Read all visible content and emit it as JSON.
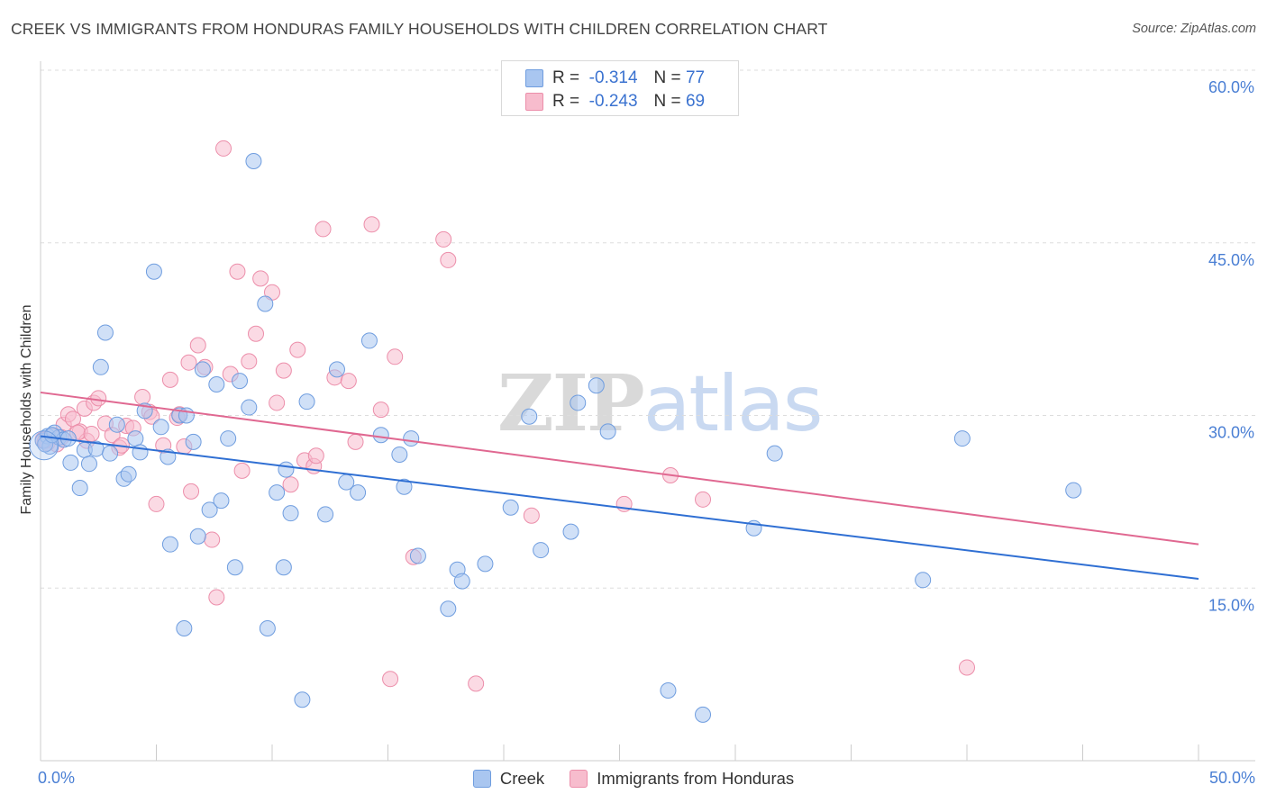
{
  "header": {
    "title": "CREEK VS IMMIGRANTS FROM HONDURAS FAMILY HOUSEHOLDS WITH CHILDREN CORRELATION CHART",
    "source": "Source: ZipAtlas.com"
  },
  "watermark": {
    "zip": "ZIP",
    "atlas": "atlas"
  },
  "legend": {
    "rows": [
      {
        "r_label": "R =",
        "r_value": "-0.314",
        "n_label": "N =",
        "n_value": "77"
      },
      {
        "r_label": "R =",
        "r_value": "-0.243",
        "n_label": "N =",
        "n_value": "69"
      }
    ]
  },
  "bottom_legend": {
    "creek": "Creek",
    "honduras": "Immigrants from Honduras"
  },
  "colors": {
    "creek_fill": "#a9c6f0",
    "creek_stroke": "#6f9ddf",
    "creek_line": "#2f6fd3",
    "honduras_fill": "#f7bccd",
    "honduras_stroke": "#ec8eaa",
    "honduras_line": "#e06891",
    "grid": "#dddddd",
    "tick_text": "#4a7fd4"
  },
  "chart_data": {
    "type": "scatter",
    "title": "CREEK VS IMMIGRANTS FROM HONDURAS FAMILY HOUSEHOLDS WITH CHILDREN CORRELATION CHART",
    "xlabel": "",
    "ylabel": "Family Households with Children",
    "xlim": [
      0,
      50
    ],
    "ylim": [
      0,
      60
    ],
    "x_tick_labels": [
      "0.0%",
      "50.0%"
    ],
    "y_ticks": [
      15,
      30,
      45,
      60
    ],
    "y_tick_labels": [
      "15.0%",
      "30.0%",
      "45.0%",
      "60.0%"
    ],
    "series": [
      {
        "name": "Creek",
        "r": -0.314,
        "n": 77,
        "trend": {
          "x": [
            0,
            50
          ],
          "y": [
            28.2,
            15.8
          ]
        },
        "points": [
          [
            0.1,
            27.8
          ],
          [
            0.3,
            28.2
          ],
          [
            0.4,
            27.3
          ],
          [
            0.6,
            28.5
          ],
          [
            0.8,
            28.1
          ],
          [
            1.0,
            27.9
          ],
          [
            1.2,
            28.0
          ],
          [
            1.3,
            25.9
          ],
          [
            1.7,
            23.7
          ],
          [
            1.9,
            27.0
          ],
          [
            2.1,
            25.8
          ],
          [
            2.4,
            27.1
          ],
          [
            2.6,
            34.2
          ],
          [
            2.8,
            37.2
          ],
          [
            3.0,
            26.7
          ],
          [
            3.3,
            29.2
          ],
          [
            3.6,
            24.5
          ],
          [
            3.8,
            24.9
          ],
          [
            4.1,
            28.0
          ],
          [
            4.3,
            26.8
          ],
          [
            4.5,
            30.4
          ],
          [
            4.9,
            42.5
          ],
          [
            5.2,
            29.0
          ],
          [
            5.5,
            26.4
          ],
          [
            5.6,
            18.8
          ],
          [
            6.0,
            30.0
          ],
          [
            6.2,
            11.5
          ],
          [
            6.3,
            30.0
          ],
          [
            6.6,
            27.7
          ],
          [
            6.8,
            19.5
          ],
          [
            7.0,
            34.0
          ],
          [
            7.3,
            21.8
          ],
          [
            7.6,
            32.7
          ],
          [
            7.8,
            22.6
          ],
          [
            8.1,
            28.0
          ],
          [
            8.4,
            16.8
          ],
          [
            8.6,
            33.0
          ],
          [
            9.0,
            30.7
          ],
          [
            9.2,
            52.1
          ],
          [
            9.7,
            39.7
          ],
          [
            9.8,
            11.5
          ],
          [
            10.2,
            23.3
          ],
          [
            10.5,
            16.8
          ],
          [
            10.6,
            25.3
          ],
          [
            10.8,
            21.5
          ],
          [
            11.3,
            5.3
          ],
          [
            11.5,
            31.2
          ],
          [
            12.3,
            21.4
          ],
          [
            12.8,
            34.0
          ],
          [
            13.2,
            24.2
          ],
          [
            13.7,
            23.3
          ],
          [
            14.2,
            36.5
          ],
          [
            14.7,
            28.3
          ],
          [
            15.5,
            26.6
          ],
          [
            15.7,
            23.8
          ],
          [
            16.0,
            28.0
          ],
          [
            16.3,
            17.8
          ],
          [
            17.6,
            13.2
          ],
          [
            18.0,
            16.6
          ],
          [
            18.2,
            15.6
          ],
          [
            19.2,
            17.1
          ],
          [
            20.3,
            22.0
          ],
          [
            21.1,
            29.9
          ],
          [
            21.6,
            18.3
          ],
          [
            22.9,
            19.9
          ],
          [
            23.2,
            31.1
          ],
          [
            24.0,
            32.6
          ],
          [
            24.5,
            28.6
          ],
          [
            27.1,
            6.1
          ],
          [
            28.6,
            4.0
          ],
          [
            30.8,
            20.2
          ],
          [
            31.7,
            26.7
          ],
          [
            38.1,
            15.7
          ],
          [
            39.8,
            28.0
          ],
          [
            44.6,
            23.5
          ],
          [
            0.2,
            27.5
          ],
          [
            0.5,
            28.3
          ]
        ]
      },
      {
        "name": "Immigrants from Honduras",
        "r": -0.243,
        "n": 69,
        "trend": {
          "x": [
            0,
            50
          ],
          "y": [
            32.0,
            18.8
          ]
        },
        "points": [
          [
            0.1,
            27.9
          ],
          [
            0.3,
            27.6
          ],
          [
            0.5,
            28.2
          ],
          [
            0.7,
            27.5
          ],
          [
            1.0,
            29.2
          ],
          [
            1.2,
            30.1
          ],
          [
            1.4,
            29.7
          ],
          [
            1.7,
            28.6
          ],
          [
            1.9,
            30.6
          ],
          [
            2.0,
            27.8
          ],
          [
            2.3,
            31.1
          ],
          [
            2.5,
            31.5
          ],
          [
            2.8,
            29.3
          ],
          [
            3.1,
            28.3
          ],
          [
            3.4,
            27.2
          ],
          [
            3.7,
            29.1
          ],
          [
            4.0,
            28.9
          ],
          [
            4.4,
            31.6
          ],
          [
            4.7,
            30.3
          ],
          [
            5.0,
            22.3
          ],
          [
            5.3,
            27.4
          ],
          [
            5.6,
            33.1
          ],
          [
            5.9,
            29.8
          ],
          [
            6.2,
            27.3
          ],
          [
            6.4,
            34.6
          ],
          [
            6.5,
            23.4
          ],
          [
            6.8,
            36.1
          ],
          [
            7.1,
            34.2
          ],
          [
            7.4,
            19.2
          ],
          [
            7.6,
            14.2
          ],
          [
            7.9,
            53.2
          ],
          [
            8.2,
            33.6
          ],
          [
            8.5,
            42.5
          ],
          [
            8.7,
            25.2
          ],
          [
            9.0,
            34.7
          ],
          [
            9.3,
            37.1
          ],
          [
            9.5,
            41.9
          ],
          [
            10.0,
            40.7
          ],
          [
            10.2,
            31.1
          ],
          [
            10.5,
            33.9
          ],
          [
            10.8,
            24.0
          ],
          [
            11.1,
            35.7
          ],
          [
            11.4,
            26.1
          ],
          [
            11.8,
            25.6
          ],
          [
            12.2,
            46.2
          ],
          [
            12.7,
            33.3
          ],
          [
            13.3,
            33.0
          ],
          [
            13.6,
            27.7
          ],
          [
            14.3,
            46.6
          ],
          [
            14.7,
            30.5
          ],
          [
            15.1,
            7.1
          ],
          [
            15.3,
            35.1
          ],
          [
            16.1,
            17.7
          ],
          [
            17.4,
            45.3
          ],
          [
            17.6,
            43.5
          ],
          [
            18.8,
            6.7
          ],
          [
            21.2,
            21.3
          ],
          [
            25.2,
            22.3
          ],
          [
            27.2,
            24.8
          ],
          [
            28.6,
            22.7
          ],
          [
            40.0,
            8.1
          ],
          [
            0.2,
            27.8
          ],
          [
            1.6,
            28.5
          ],
          [
            0.9,
            28.1
          ],
          [
            2.2,
            28.4
          ],
          [
            3.5,
            27.4
          ],
          [
            6.0,
            30.1
          ],
          [
            4.8,
            29.9
          ],
          [
            11.9,
            26.5
          ]
        ]
      }
    ]
  }
}
